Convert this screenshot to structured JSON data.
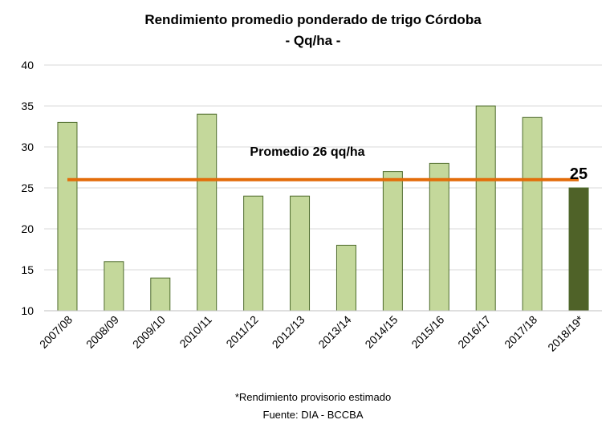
{
  "chart_data": {
    "type": "bar",
    "title": "Rendimiento promedio ponderado de trigo Córdoba",
    "subtitle": "- Qq/ha -",
    "categories": [
      "2007/08",
      "2008/09",
      "2009/10",
      "2010/11",
      "2011/12",
      "2012/13",
      "2013/14",
      "2014/15",
      "2015/16",
      "2016/17",
      "2017/18",
      "2018/19*"
    ],
    "values": [
      33,
      16,
      14,
      34,
      24,
      24,
      18,
      27,
      28,
      35,
      33.6,
      25
    ],
    "ylim": [
      10,
      40
    ],
    "yticks": [
      "10",
      "15",
      "20",
      "25",
      "30",
      "35",
      "40"
    ],
    "grid": true,
    "average": {
      "value": 26,
      "label": "Promedio 26 qq/ha"
    },
    "last_bar_label": "25",
    "footnote": "*Rendimiento provisorio estimado",
    "source": "Fuente: DIA - BCCBA",
    "colors": {
      "bar_fill": "#c4d89b",
      "bar_stroke": "#4e6b2c",
      "last_bar_fill": "#4f6228",
      "average_line": "#e36c09",
      "grid": "#d9d9d9"
    }
  }
}
